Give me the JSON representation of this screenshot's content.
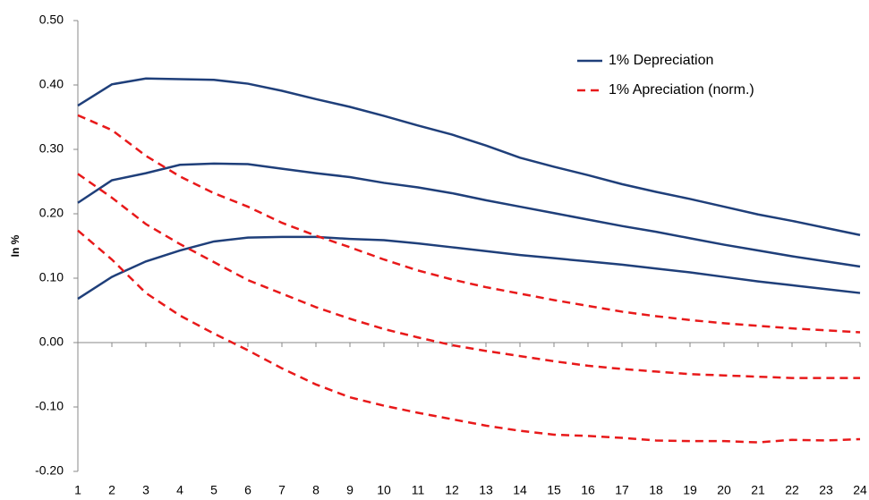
{
  "chart_data": {
    "type": "line",
    "ylabel": "In %",
    "x": [
      1,
      2,
      3,
      4,
      5,
      6,
      7,
      8,
      9,
      10,
      11,
      12,
      13,
      14,
      15,
      16,
      17,
      18,
      19,
      20,
      21,
      22,
      23,
      24
    ],
    "xlim": [
      1,
      24
    ],
    "ylim": [
      -0.2,
      0.5
    ],
    "yticks": [
      {
        "value": -0.2,
        "label": "-0.20"
      },
      {
        "value": -0.1,
        "label": "-0.10"
      },
      {
        "value": 0,
        "label": "0.00"
      },
      {
        "value": 0.1,
        "label": "0.10"
      },
      {
        "value": 0.2,
        "label": "0.20"
      },
      {
        "value": 0.3,
        "label": "0.30"
      },
      {
        "value": 0.4,
        "label": "0.40"
      },
      {
        "value": 0.5,
        "label": "0.50"
      }
    ],
    "grid": false,
    "legend": "top-right",
    "series": [
      {
        "name": "1% Depreciation",
        "color": "#1f3f7a",
        "dashed": false,
        "values": [
          0.368,
          0.401,
          0.41,
          0.409,
          0.408,
          0.402,
          0.391,
          0.378,
          0.366,
          0.352,
          0.337,
          0.323,
          0.306,
          0.287,
          0.273,
          0.26,
          0.246,
          0.234,
          0.223,
          0.211,
          0.199,
          0.189,
          0.178,
          0.167
        ]
      },
      {
        "color": "#1f3f7a",
        "dashed": false,
        "values": [
          0.217,
          0.252,
          0.263,
          0.276,
          0.278,
          0.277,
          0.27,
          0.263,
          0.257,
          0.248,
          0.241,
          0.232,
          0.221,
          0.211,
          0.201,
          0.191,
          0.181,
          0.172,
          0.162,
          0.152,
          0.143,
          0.134,
          0.126,
          0.118
        ]
      },
      {
        "color": "#1f3f7a",
        "dashed": false,
        "values": [
          0.068,
          0.102,
          0.126,
          0.143,
          0.157,
          0.163,
          0.164,
          0.164,
          0.161,
          0.159,
          0.154,
          0.148,
          0.142,
          0.136,
          0.131,
          0.126,
          0.121,
          0.115,
          0.109,
          0.102,
          0.095,
          0.089,
          0.083,
          0.077
        ]
      },
      {
        "name": "1% Apreciation (norm.)",
        "color": "#e8191a",
        "dashed": true,
        "values": [
          0.353,
          0.33,
          0.29,
          0.258,
          0.232,
          0.211,
          0.186,
          0.166,
          0.148,
          0.129,
          0.112,
          0.098,
          0.086,
          0.076,
          0.066,
          0.057,
          0.048,
          0.041,
          0.035,
          0.03,
          0.026,
          0.022,
          0.019,
          0.016
        ]
      },
      {
        "color": "#e8191a",
        "dashed": true,
        "values": [
          0.262,
          0.225,
          0.184,
          0.153,
          0.125,
          0.097,
          0.076,
          0.055,
          0.037,
          0.021,
          0.008,
          -0.004,
          -0.013,
          -0.021,
          -0.029,
          -0.036,
          -0.041,
          -0.045,
          -0.049,
          -0.051,
          -0.053,
          -0.055,
          -0.055,
          -0.055
        ]
      },
      {
        "color": "#e8191a",
        "dashed": true,
        "values": [
          0.174,
          0.129,
          0.077,
          0.042,
          0.014,
          -0.012,
          -0.04,
          -0.065,
          -0.085,
          -0.098,
          -0.109,
          -0.119,
          -0.129,
          -0.137,
          -0.143,
          -0.145,
          -0.148,
          -0.152,
          -0.153,
          -0.153,
          -0.155,
          -0.151,
          -0.152,
          -0.15
        ]
      }
    ]
  }
}
